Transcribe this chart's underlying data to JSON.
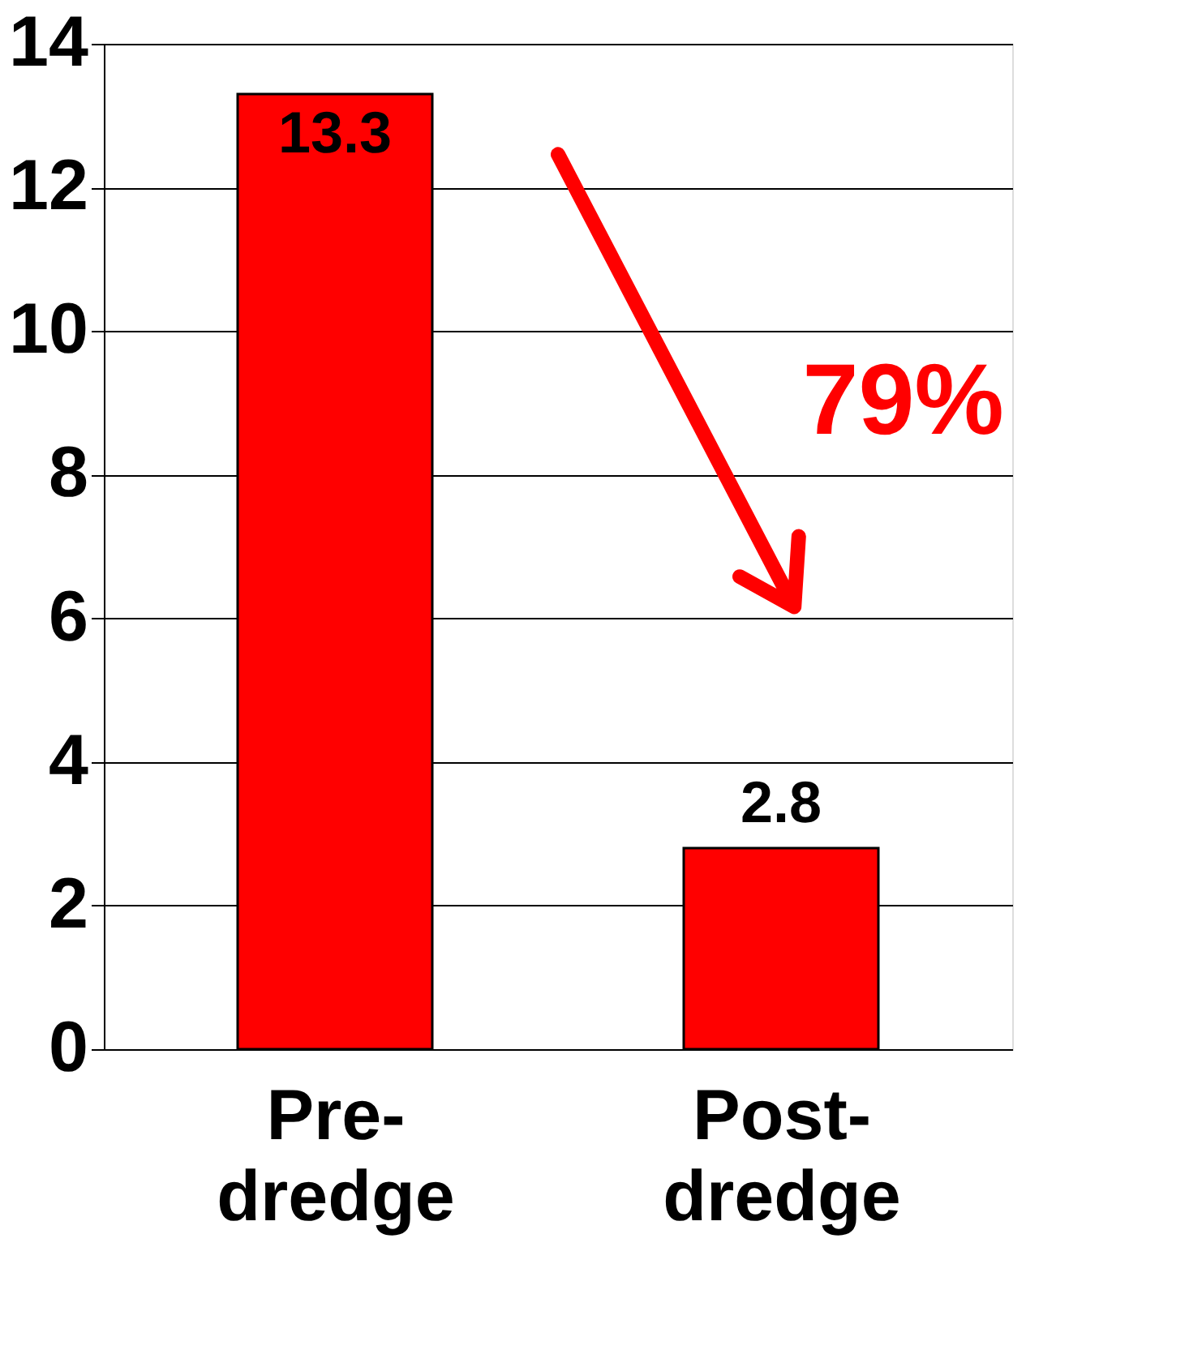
{
  "chart_data": {
    "type": "bar",
    "categories": [
      "Pre-dredge",
      "Post-dredge"
    ],
    "series": [
      {
        "color": "#ff0000",
        "values": [
          13.3,
          2.8
        ]
      }
    ],
    "ylim": [
      0,
      14
    ],
    "yticks": [
      0,
      2,
      4,
      6,
      8,
      10,
      12,
      14
    ],
    "grid": "y",
    "data_labels": true,
    "annotations": [
      "79%"
    ]
  }
}
